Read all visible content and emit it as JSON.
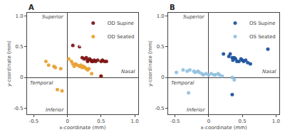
{
  "chart_data": [
    {
      "type": "scatter",
      "title": "A",
      "xlabel": "x-coordinate (mm)",
      "ylabel": "y-coordinate (mm)",
      "xlim": [
        -0.6,
        1.05
      ],
      "ylim": [
        -0.6,
        1.05
      ],
      "xticks": [
        -0.5,
        0,
        0.5,
        {
          "value": 1,
          "label": "1.0"
        }
      ],
      "yticks": [
        -0.5,
        0,
        0.5,
        {
          "value": 1,
          "label": "1.0"
        }
      ],
      "grid": false,
      "legend": "upper right",
      "annotations": [
        "Superior",
        "Inferior",
        "Temporal",
        "Nasal"
      ],
      "series": [
        {
          "name": "OD Seated",
          "color": "#E8A030",
          "x": [
            -0.32,
            -0.28,
            -0.2,
            -0.18,
            -0.1,
            0.02,
            0.06,
            0.08,
            0.1,
            0.12,
            0.15,
            0.18,
            0.2,
            0.22,
            0.24,
            0.26,
            0.28,
            0.3,
            0.32,
            0.36,
            0.5,
            -0.15,
            -0.08
          ],
          "values": [
            0.26,
            0.2,
            0.18,
            0.16,
            0.14,
            0.3,
            0.26,
            0.22,
            0.18,
            0.22,
            0.2,
            0.18,
            0.2,
            0.16,
            0.18,
            0.16,
            0.14,
            0.12,
            0.14,
            0.06,
            0.02,
            -0.2,
            -0.22
          ]
        },
        {
          "name": "OD Supine",
          "color": "#7B1010",
          "x": [
            0.08,
            0.18,
            0.22,
            0.25,
            0.28,
            0.3,
            0.3,
            0.33,
            0.35,
            0.36,
            0.38,
            0.4,
            0.42,
            0.45,
            0.5,
            0.52,
            0.55,
            0.58,
            0.5
          ],
          "values": [
            0.52,
            0.5,
            0.32,
            0.3,
            0.32,
            0.28,
            0.26,
            0.3,
            0.28,
            0.26,
            0.26,
            0.28,
            0.26,
            0.28,
            0.26,
            0.28,
            0.26,
            0.26,
            0.02
          ]
        }
      ]
    },
    {
      "type": "scatter",
      "title": "B",
      "xlabel": "x-coordinate (mm)",
      "ylabel": "y-coordinate (mm)",
      "xlim": [
        -0.6,
        1.05
      ],
      "ylim": [
        -0.6,
        1.05
      ],
      "xticks": [
        -0.5,
        0,
        0.5,
        {
          "value": 1,
          "label": "1.0"
        }
      ],
      "yticks": [
        -0.5,
        0,
        0.5,
        {
          "value": 1,
          "label": "1.0"
        }
      ],
      "grid": false,
      "legend": "upper right",
      "annotations": [
        "Superior",
        "Inferior",
        "Temporal",
        "Nasal"
      ],
      "series": [
        {
          "name": "OS Seated",
          "color": "#90C0E0",
          "x": [
            -0.48,
            -0.38,
            -0.32,
            -0.28,
            -0.22,
            -0.2,
            -0.16,
            -0.14,
            -0.1,
            -0.08,
            -0.04,
            0.0,
            0.04,
            0.08,
            0.1,
            0.14,
            0.16,
            0.2,
            0.35,
            0.38,
            -0.3
          ],
          "values": [
            0.08,
            0.12,
            0.1,
            0.12,
            0.1,
            0.08,
            0.1,
            0.08,
            0.06,
            0.04,
            0.06,
            0.04,
            0.06,
            0.04,
            0.04,
            0.06,
            0.04,
            0.02,
            0.0,
            -0.04,
            -0.25
          ]
        },
        {
          "name": "OS Supine",
          "color": "#1A4F9C",
          "x": [
            0.22,
            0.3,
            0.32,
            0.35,
            0.36,
            0.38,
            0.4,
            0.42,
            0.45,
            0.48,
            0.5,
            0.52,
            0.55,
            0.58,
            0.62,
            0.88,
            0.35
          ],
          "values": [
            0.38,
            0.34,
            0.38,
            0.32,
            0.28,
            0.32,
            0.3,
            0.26,
            0.26,
            0.3,
            0.28,
            0.26,
            0.28,
            0.24,
            0.22,
            0.46,
            -0.28
          ]
        }
      ]
    }
  ]
}
